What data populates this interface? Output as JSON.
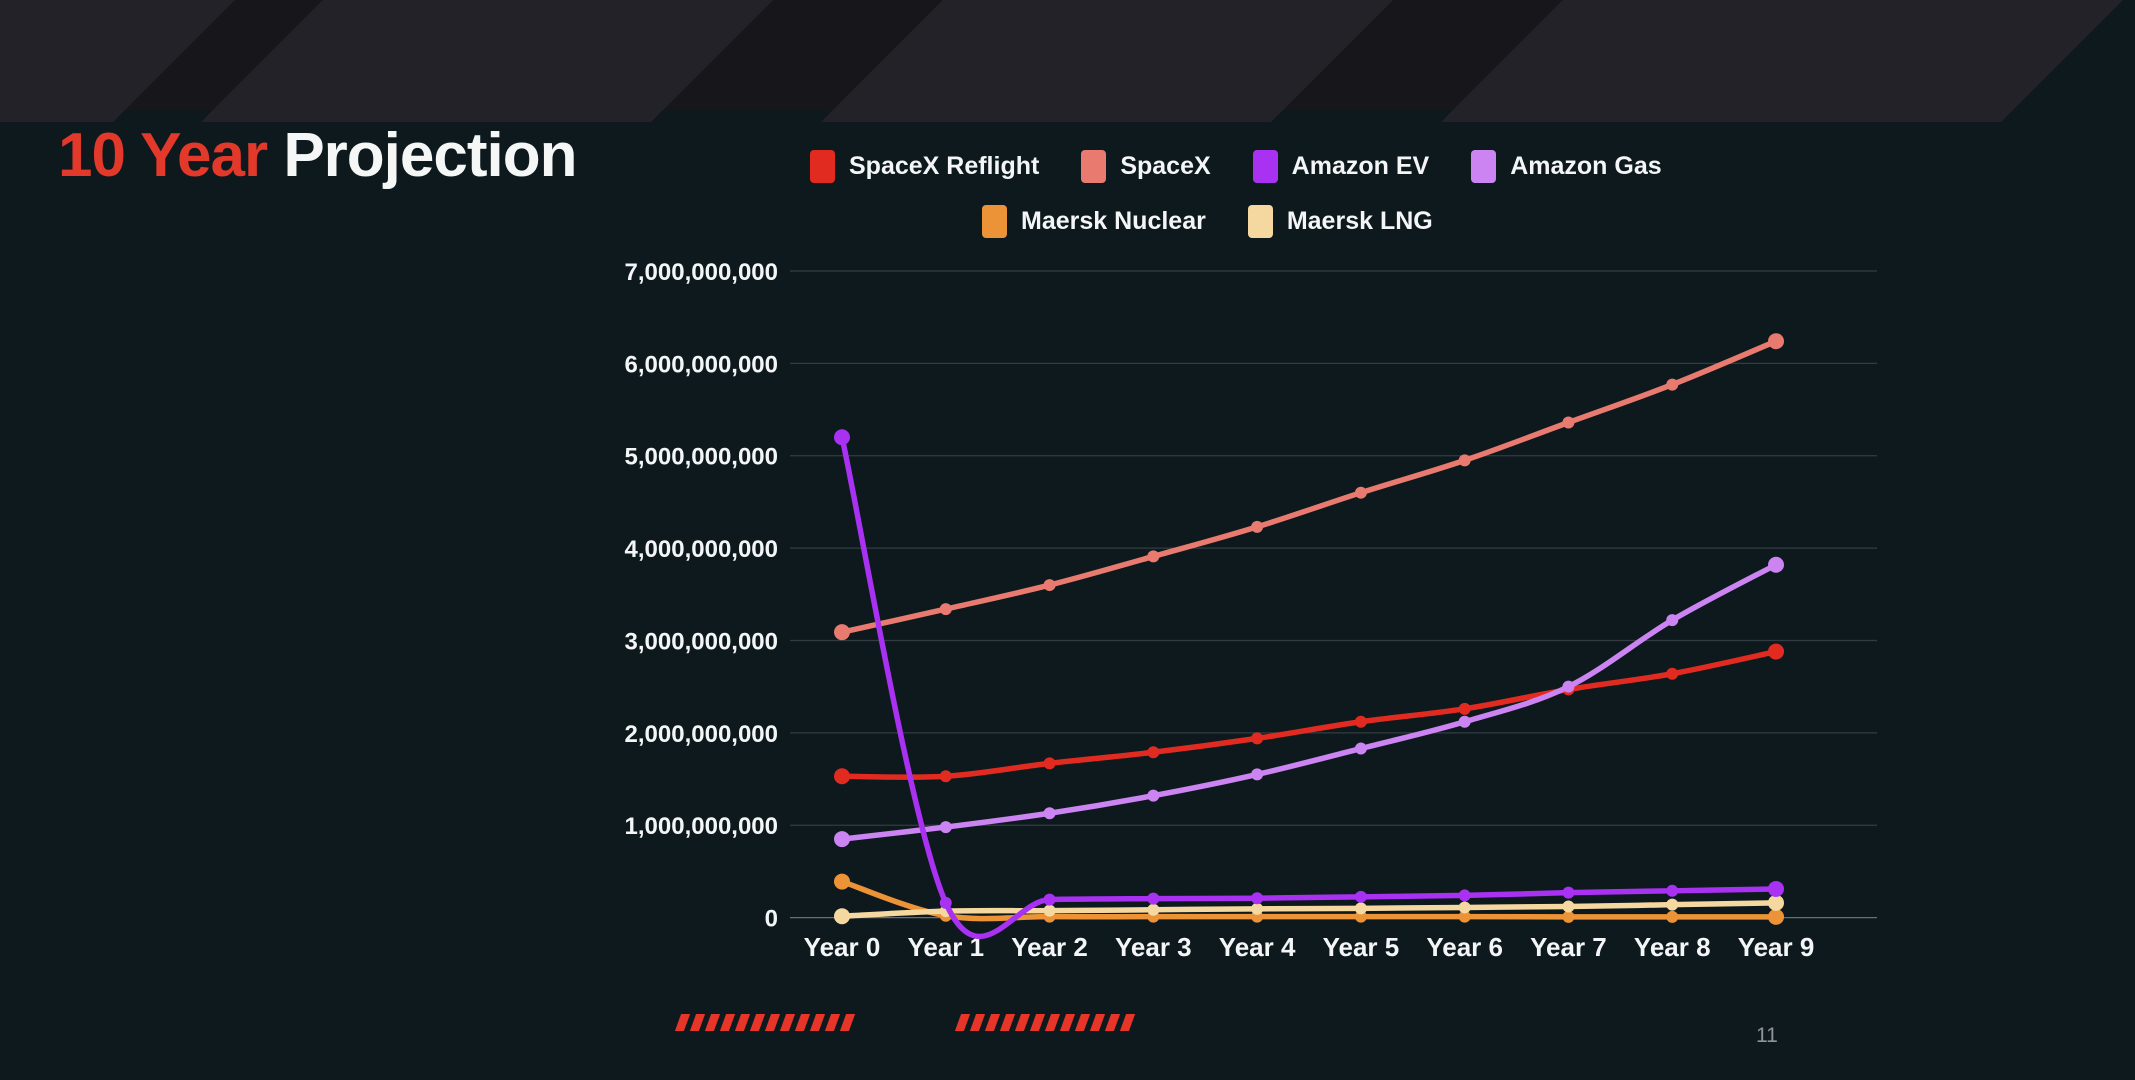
{
  "slide": {
    "title": {
      "highlight": "10 Year",
      "rest": " Projection"
    },
    "page_number": "11"
  },
  "colors": {
    "background": "#0d191d",
    "banner_background": "#17161a",
    "banner_shape": "#242229",
    "title_highlight": "#e3392b",
    "title_text": "#f5f7f7",
    "axis_text": "#f3f5f6",
    "gridline": "rgba(255,255,255,0.16)",
    "zero_line": "rgba(255,255,255,0.38)",
    "footer_dash": "#e73529",
    "page_number": "#8e9599"
  },
  "decor": {
    "dash_groups": [
      12,
      12
    ]
  },
  "chart_data": {
    "type": "line",
    "title": "10 Year Projection",
    "xlabel": "",
    "ylabel": "",
    "grid": true,
    "legend_position": "top",
    "ylim": [
      0,
      7000000000
    ],
    "ytick_step": 1000000000,
    "yticks": [
      "0",
      "1,000,000,000",
      "2,000,000,000",
      "3,000,000,000",
      "4,000,000,000",
      "5,000,000,000",
      "6,000,000,000",
      "7,000,000,000"
    ],
    "categories": [
      "Year 0",
      "Year 1",
      "Year 2",
      "Year 3",
      "Year 4",
      "Year 5",
      "Year 6",
      "Year 7",
      "Year 8",
      "Year 9"
    ],
    "series": [
      {
        "name": "SpaceX Reflight",
        "color": "#e22b20",
        "values": [
          1530000000,
          1530000000,
          1670000000,
          1790000000,
          1940000000,
          2120000000,
          2260000000,
          2470000000,
          2640000000,
          2880000000
        ]
      },
      {
        "name": "SpaceX",
        "color": "#e87a70",
        "values": [
          3090000000,
          3340000000,
          3600000000,
          3910000000,
          4230000000,
          4600000000,
          4950000000,
          5360000000,
          5770000000,
          6240000000
        ]
      },
      {
        "name": "Amazon EV",
        "color": "#a831f2",
        "values": [
          5200000000,
          160000000,
          195000000,
          205000000,
          210000000,
          225000000,
          240000000,
          270000000,
          290000000,
          310000000
        ]
      },
      {
        "name": "Amazon Gas",
        "color": "#cb84f2",
        "values": [
          850000000,
          980000000,
          1130000000,
          1320000000,
          1550000000,
          1830000000,
          2120000000,
          2500000000,
          3220000000,
          3820000000
        ]
      },
      {
        "name": "Maersk Nuclear",
        "color": "#eb9336",
        "values": [
          390000000,
          20000000,
          10000000,
          10000000,
          10000000,
          10000000,
          10000000,
          8000000,
          8000000,
          8000000
        ]
      },
      {
        "name": "Maersk LNG",
        "color": "#f5d7a0",
        "values": [
          15000000,
          70000000,
          75000000,
          85000000,
          95000000,
          100000000,
          110000000,
          120000000,
          140000000,
          160000000
        ]
      }
    ]
  }
}
